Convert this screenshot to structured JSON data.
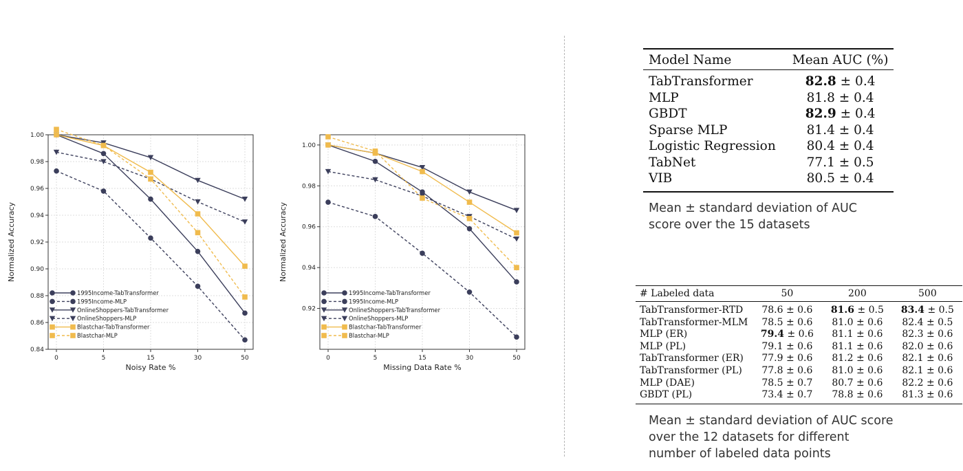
{
  "chart_data": [
    {
      "type": "line",
      "xlabel": "Noisy Rate %",
      "ylabel": "Normalized Accuracy",
      "categories": [
        "0",
        "5",
        "15",
        "30",
        "50"
      ],
      "ylim": [
        0.84,
        1.0
      ],
      "yticks": [
        "0.84",
        "0.86",
        "0.88",
        "0.90",
        "0.92",
        "0.94",
        "0.96",
        "0.98",
        "1.00"
      ],
      "grid": true,
      "legend_position": "lower-left",
      "series": [
        {
          "name": "1995Income-TabTransformer",
          "values": [
            1.0,
            0.986,
            0.952,
            0.913,
            0.867
          ],
          "color": "#3b3e5b",
          "dashed": false,
          "marker": "circle"
        },
        {
          "name": "1995Income-MLP",
          "values": [
            0.973,
            0.958,
            0.923,
            0.887,
            0.847
          ],
          "color": "#3b3e5b",
          "dashed": true,
          "marker": "circle"
        },
        {
          "name": "OnlineShoppers-TabTransformer",
          "values": [
            1.0,
            0.994,
            0.983,
            0.966,
            0.952
          ],
          "color": "#3b3e5b",
          "dashed": false,
          "marker": "triangle-down"
        },
        {
          "name": "OnlineShoppers-MLP",
          "values": [
            0.987,
            0.98,
            0.967,
            0.95,
            0.935
          ],
          "color": "#3b3e5b",
          "dashed": true,
          "marker": "triangle-down"
        },
        {
          "name": "Blastchar-TabTransformer",
          "values": [
            1.0,
            0.992,
            0.972,
            0.941,
            0.902
          ],
          "color": "#f0bb4d",
          "dashed": false,
          "marker": "square"
        },
        {
          "name": "Blastchar-MLP",
          "values": [
            1.004,
            0.992,
            0.967,
            0.927,
            0.879
          ],
          "color": "#f0bb4d",
          "dashed": true,
          "marker": "square"
        }
      ]
    },
    {
      "type": "line",
      "xlabel": "Missing Data Rate %",
      "ylabel": "Normalized Accuracy",
      "categories": [
        "0",
        "5",
        "15",
        "30",
        "50"
      ],
      "ylim": [
        0.9,
        1.005
      ],
      "yticks": [
        "0.92",
        "0.94",
        "0.96",
        "0.98",
        "1.00"
      ],
      "grid": true,
      "legend_position": "lower-left",
      "series": [
        {
          "name": "1995Income-TabTransformer",
          "values": [
            1.0,
            0.992,
            0.977,
            0.959,
            0.933
          ],
          "color": "#3b3e5b",
          "dashed": false,
          "marker": "circle"
        },
        {
          "name": "1995Income-MLP",
          "values": [
            0.972,
            0.965,
            0.947,
            0.928,
            0.906
          ],
          "color": "#3b3e5b",
          "dashed": true,
          "marker": "circle"
        },
        {
          "name": "OnlineShoppers-TabTransformer",
          "values": [
            1.0,
            0.996,
            0.989,
            0.977,
            0.968
          ],
          "color": "#3b3e5b",
          "dashed": false,
          "marker": "triangle-down"
        },
        {
          "name": "OnlineShoppers-MLP",
          "values": [
            0.987,
            0.983,
            0.975,
            0.965,
            0.954
          ],
          "color": "#3b3e5b",
          "dashed": true,
          "marker": "triangle-down"
        },
        {
          "name": "Blastchar-TabTransformer",
          "values": [
            1.0,
            0.996,
            0.987,
            0.972,
            0.957
          ],
          "color": "#f0bb4d",
          "dashed": false,
          "marker": "square"
        },
        {
          "name": "Blastchar-MLP",
          "values": [
            1.004,
            0.997,
            0.974,
            0.964,
            0.94
          ],
          "color": "#f0bb4d",
          "dashed": true,
          "marker": "square"
        }
      ]
    }
  ],
  "auc_table": {
    "header": [
      "Model Name",
      "Mean AUC (%)"
    ],
    "rows": [
      {
        "model": "TabTransformer",
        "mean": "82.8",
        "pm": "± 0.4",
        "bold": true
      },
      {
        "model": "MLP",
        "mean": "81.8",
        "pm": "± 0.4",
        "bold": false
      },
      {
        "model": "GBDT",
        "mean": "82.9",
        "pm": "± 0.4",
        "bold": true
      },
      {
        "model": "Sparse MLP",
        "mean": "81.4",
        "pm": "± 0.4",
        "bold": false
      },
      {
        "model": "Logistic Regression",
        "mean": "80.4",
        "pm": "± 0.4",
        "bold": false
      },
      {
        "model": "TabNet",
        "mean": "77.1",
        "pm": "± 0.5",
        "bold": false
      },
      {
        "model": "VIB",
        "mean": "80.5",
        "pm": "± 0.4",
        "bold": false
      }
    ],
    "caption": "Mean ± standard deviation of AUC score over the 15 datasets"
  },
  "labeled_table": {
    "header": [
      "# Labeled data",
      "50",
      "200",
      "500"
    ],
    "rows": [
      {
        "model": "TabTransformer-RTD",
        "cells": [
          {
            "v": "78.6",
            "pm": "± 0.6",
            "bold": false
          },
          {
            "v": "81.6",
            "pm": "± 0.5",
            "bold": true
          },
          {
            "v": "83.4",
            "pm": "± 0.5",
            "bold": true
          }
        ]
      },
      {
        "model": "TabTransformer-MLM",
        "cells": [
          {
            "v": "78.5",
            "pm": "± 0.6",
            "bold": false
          },
          {
            "v": "81.0",
            "pm": "± 0.6",
            "bold": false
          },
          {
            "v": "82.4",
            "pm": "± 0.5",
            "bold": false
          }
        ]
      },
      {
        "model": "MLP (ER)",
        "cells": [
          {
            "v": "79.4",
            "pm": "± 0.6",
            "bold": true
          },
          {
            "v": "81.1",
            "pm": "± 0.6",
            "bold": false
          },
          {
            "v": "82.3",
            "pm": "± 0.6",
            "bold": false
          }
        ]
      },
      {
        "model": "MLP (PL)",
        "cells": [
          {
            "v": "79.1",
            "pm": "± 0.6",
            "bold": false
          },
          {
            "v": "81.1",
            "pm": "± 0.6",
            "bold": false
          },
          {
            "v": "82.0",
            "pm": "± 0.6",
            "bold": false
          }
        ]
      },
      {
        "model": "TabTransformer (ER)",
        "cells": [
          {
            "v": "77.9",
            "pm": "± 0.6",
            "bold": false
          },
          {
            "v": "81.2",
            "pm": "± 0.6",
            "bold": false
          },
          {
            "v": "82.1",
            "pm": "± 0.6",
            "bold": false
          }
        ]
      },
      {
        "model": "TabTransformer (PL)",
        "cells": [
          {
            "v": "77.8",
            "pm": "± 0.6",
            "bold": false
          },
          {
            "v": "81.0",
            "pm": "± 0.6",
            "bold": false
          },
          {
            "v": "82.1",
            "pm": "± 0.6",
            "bold": false
          }
        ]
      },
      {
        "model": "MLP (DAE)",
        "cells": [
          {
            "v": "78.5",
            "pm": "± 0.7",
            "bold": false
          },
          {
            "v": "80.7",
            "pm": "± 0.6",
            "bold": false
          },
          {
            "v": "82.2",
            "pm": "± 0.6",
            "bold": false
          }
        ]
      },
      {
        "model": "GBDT (PL)",
        "cells": [
          {
            "v": "73.4",
            "pm": "± 0.7",
            "bold": false
          },
          {
            "v": "78.8",
            "pm": "± 0.6",
            "bold": false
          },
          {
            "v": "81.3",
            "pm": "± 0.6",
            "bold": false
          }
        ]
      }
    ],
    "caption": "Mean ± standard deviation of AUC score over the 12 datasets for different number of labeled data points"
  }
}
